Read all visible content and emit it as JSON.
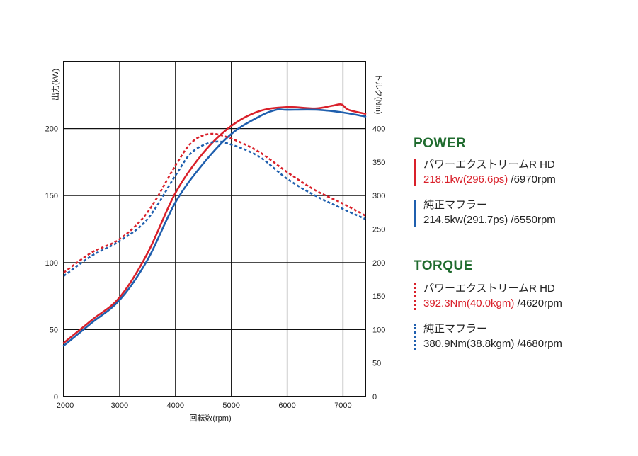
{
  "chart_data": {
    "type": "line",
    "xlabel": "回転数(rpm)",
    "ylabel_left": "出力(kW)",
    "ylabel_right": "トルク(Nm)",
    "xlim": [
      2000,
      7400
    ],
    "ylim_left": [
      0,
      250
    ],
    "ylim_right": [
      0,
      500
    ],
    "x_ticks": [
      2000,
      3000,
      4000,
      5000,
      6000,
      7000
    ],
    "y_ticks_left": [
      0,
      50,
      100,
      150,
      200
    ],
    "y_ticks_right": [
      0,
      50,
      100,
      150,
      200,
      250,
      300,
      350,
      400
    ],
    "grid": true,
    "series": [
      {
        "name": "パワーエクストリームR HD",
        "metric": "power",
        "axis": "left",
        "color": "#d9202a",
        "style": "solid",
        "x": [
          2000,
          2500,
          3000,
          3500,
          4000,
          4500,
          5000,
          5500,
          6000,
          6500,
          6800,
          6970,
          7100,
          7400
        ],
        "y": [
          40,
          57,
          74,
          107,
          152,
          182,
          202,
          213,
          216,
          215,
          217,
          218,
          214,
          211
        ]
      },
      {
        "name": "純正マフラー",
        "metric": "power",
        "axis": "left",
        "color": "#1f5fae",
        "style": "solid",
        "x": [
          2000,
          2500,
          3000,
          3500,
          4000,
          4500,
          5000,
          5500,
          5800,
          6000,
          6550,
          7000,
          7400
        ],
        "y": [
          38,
          55,
          72,
          102,
          145,
          174,
          196,
          209,
          214,
          214,
          214,
          212,
          209
        ]
      },
      {
        "name": "パワーエクストリームR HD",
        "metric": "torque",
        "axis": "right",
        "color": "#d9202a",
        "style": "dotted",
        "x": [
          2000,
          2500,
          3000,
          3500,
          4000,
          4300,
          4620,
          5000,
          5500,
          6000,
          6500,
          7000,
          7400
        ],
        "y": [
          185,
          215,
          235,
          275,
          345,
          380,
          392,
          385,
          365,
          335,
          308,
          288,
          270
        ]
      },
      {
        "name": "純正マフラー",
        "metric": "torque",
        "axis": "right",
        "color": "#1f5fae",
        "style": "dotted",
        "x": [
          2000,
          2500,
          3000,
          3500,
          4000,
          4300,
          4680,
          5000,
          5500,
          6000,
          6500,
          7000,
          7400
        ],
        "y": [
          180,
          210,
          232,
          265,
          330,
          365,
          380,
          376,
          358,
          325,
          300,
          280,
          265
        ]
      }
    ]
  },
  "legend": {
    "power_heading": "POWER",
    "power_entries": [
      {
        "name": "パワーエクストリームR HD",
        "peak": "218.1kw(296.6ps)",
        "rpm": "/6970rpm",
        "color": "#d9202a"
      },
      {
        "name": "純正マフラー",
        "peak": "214.5kw(291.7ps)",
        "rpm": "/6550rpm",
        "color": "#1f5fae"
      }
    ],
    "torque_heading": "TORQUE",
    "torque_entries": [
      {
        "name": "パワーエクストリームR HD",
        "peak": "392.3Nm(40.0kgm)",
        "rpm": "/4620rpm",
        "color": "#d9202a"
      },
      {
        "name": "純正マフラー",
        "peak": "380.9Nm(38.8kgm)",
        "rpm": "/4680rpm",
        "color": "#1f5fae"
      }
    ]
  }
}
